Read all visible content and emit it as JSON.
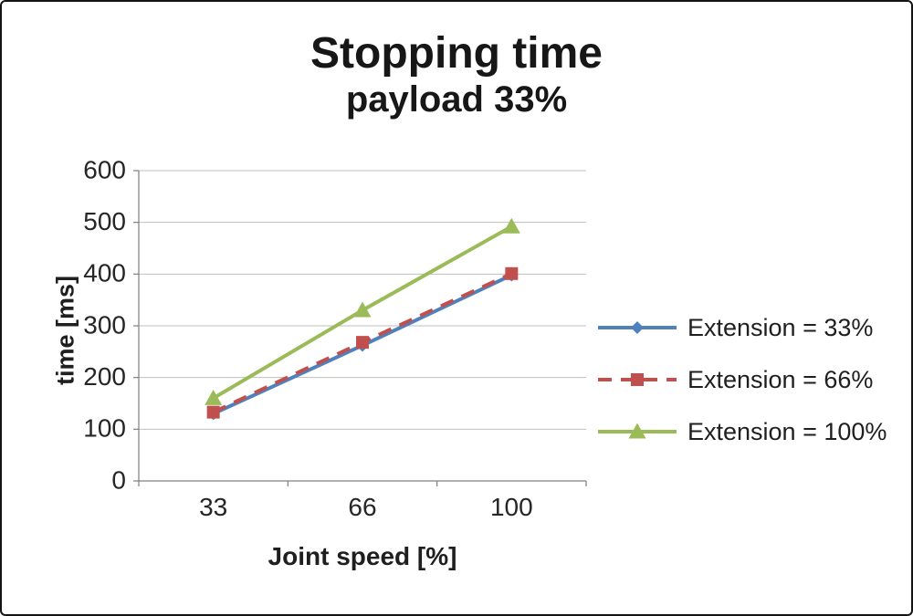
{
  "title": {
    "line1": "Stopping time",
    "line2": "payload 33%"
  },
  "axes": {
    "y_label": "time [ms]",
    "x_label": "Joint speed [%]"
  },
  "chart_data": {
    "type": "line",
    "title": "Stopping time payload 33%",
    "xlabel": "Joint speed [%]",
    "ylabel": "time [ms]",
    "categories": [
      "33",
      "66",
      "100"
    ],
    "series": [
      {
        "name": "Extension = 33%",
        "values": [
          130,
          262,
          398
        ],
        "color": "#4F81BD",
        "dash": null,
        "marker": "diamond"
      },
      {
        "name": "Extension = 66%",
        "values": [
          133,
          268,
          401
        ],
        "color": "#C0504D",
        "dash": "15 10",
        "marker": "square"
      },
      {
        "name": "Extension = 100%",
        "values": [
          160,
          330,
          492
        ],
        "color": "#9BBB59",
        "dash": null,
        "marker": "triangle"
      }
    ],
    "ylim": [
      0,
      600
    ],
    "ytick_step": 100,
    "grid": true,
    "legend_position": "right"
  },
  "colors": {
    "grid": "#BFBFBF",
    "axis": "#7F7F7F",
    "text": "#262626",
    "title_text": "#171717"
  }
}
